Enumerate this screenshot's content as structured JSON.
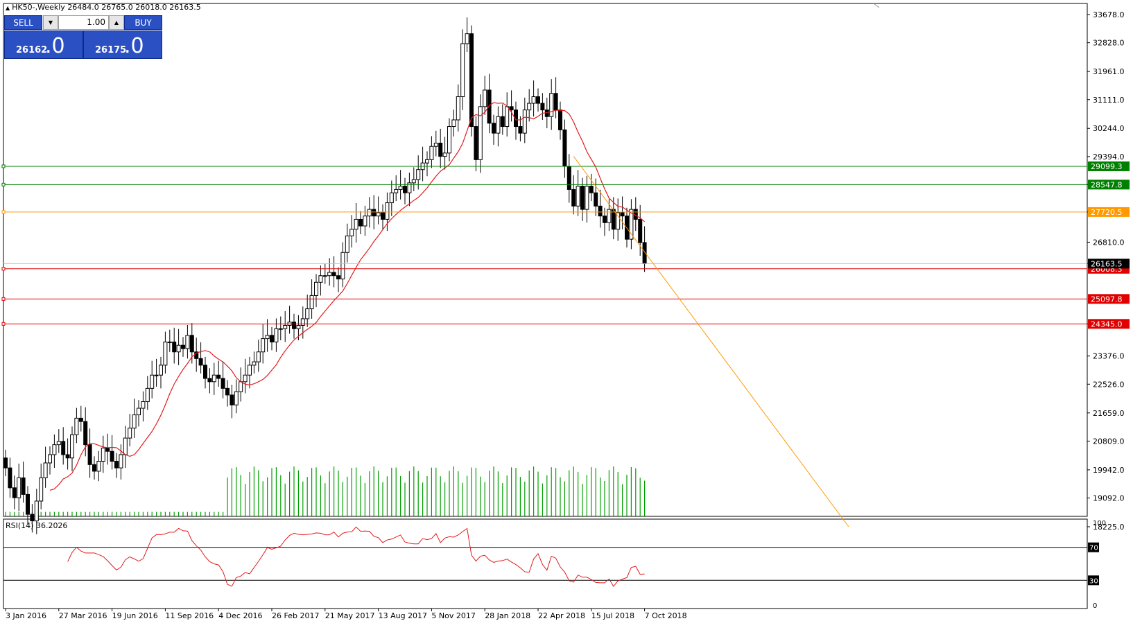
{
  "header": {
    "symbol": "HK50-,Weekly",
    "ohlc": "26484.0 26765.0 26018.0 26163.5"
  },
  "trade_panel": {
    "sell_label": "SELL",
    "buy_label": "BUY",
    "lot": "1.00",
    "sell_main": "26162",
    "sell_frac": ".0",
    "buy_main": "26175",
    "buy_frac": ".0"
  },
  "rsi_label": "RSI(14) 36.2026",
  "colors": {
    "background": "#ffffff",
    "candle": "#000000",
    "volume": "#00a000",
    "ma": "#e41a1c",
    "support_line": "#e00000",
    "resistance_line": "#008000",
    "trend_line": "#ff9900",
    "rsi": "#e41a1c",
    "button": "#2b50c4"
  },
  "chart_data": {
    "type": "candlestick",
    "timeframe": "Weekly",
    "ylim": [
      18225.0,
      33678.0
    ],
    "y_ticks": [
      "33678.0",
      "32828.0",
      "31961.0",
      "31111.0",
      "30244.0",
      "29394.0",
      "28547.8",
      "27720.5",
      "26810.0",
      "26163.5",
      "24345.0",
      "23376.0",
      "22526.0",
      "21659.0",
      "20809.0",
      "19942.0",
      "19092.0",
      "18225.0"
    ],
    "x_ticks": [
      {
        "i": 0,
        "label": "3 Jan 2016"
      },
      {
        "i": 12,
        "label": "27 Mar 2016"
      },
      {
        "i": 24,
        "label": "19 Jun 2016"
      },
      {
        "i": 36,
        "label": "11 Sep 2016"
      },
      {
        "i": 48,
        "label": "4 Dec 2016"
      },
      {
        "i": 60,
        "label": "26 Feb 2017"
      },
      {
        "i": 72,
        "label": "21 May 2017"
      },
      {
        "i": 84,
        "label": "13 Aug 2017"
      },
      {
        "i": 96,
        "label": "5 Nov 2017"
      },
      {
        "i": 108,
        "label": "28 Jan 2018"
      },
      {
        "i": 120,
        "label": "22 Apr 2018"
      },
      {
        "i": 132,
        "label": "15 Jul 2018"
      },
      {
        "i": 144,
        "label": "7 Oct 2018"
      }
    ],
    "closes": [
      20000,
      19400,
      19100,
      19700,
      19200,
      18600,
      18400,
      19000,
      19700,
      20150,
      20400,
      20700,
      20800,
      20400,
      20300,
      21000,
      21500,
      21400,
      20700,
      20100,
      19900,
      20200,
      20600,
      20500,
      20200,
      20000,
      20400,
      20900,
      21200,
      21600,
      21800,
      22000,
      22400,
      22800,
      22800,
      23100,
      23800,
      23800,
      23500,
      23700,
      23600,
      24000,
      23500,
      23300,
      23100,
      22700,
      22600,
      22800,
      22700,
      22400,
      22200,
      21900,
      22300,
      22600,
      22800,
      23100,
      23200,
      23500,
      23900,
      24000,
      23800,
      24200,
      24200,
      24300,
      24400,
      24200,
      24300,
      24500,
      24800,
      25200,
      25600,
      25800,
      25800,
      25900,
      25800,
      25700,
      26500,
      27000,
      27200,
      27500,
      27300,
      27600,
      27800,
      27600,
      27700,
      27500,
      28000,
      28300,
      28400,
      28500,
      28300,
      28600,
      28700,
      29000,
      29200,
      29300,
      29700,
      29800,
      29400,
      29500,
      30300,
      30500,
      31200,
      32800,
      33100,
      30300,
      29300,
      30900,
      31400,
      30400,
      30100,
      30600,
      30300,
      30900,
      30800,
      30300,
      30100,
      30800,
      31000,
      31200,
      31000,
      30800,
      30600,
      31300,
      30800,
      30200,
      29100,
      28400,
      27900,
      28500,
      27800,
      28500,
      28300,
      27900,
      27600,
      27400,
      27800,
      27200,
      27700,
      27600,
      26900,
      27800,
      27500,
      26800,
      26163.5
    ],
    "ma_period": 10,
    "volumes": [
      1,
      1,
      1,
      1,
      1,
      1,
      1,
      1,
      1,
      1,
      1,
      1,
      1,
      1,
      1,
      1,
      1,
      1,
      1,
      1,
      1,
      1,
      1,
      1,
      1,
      1,
      1,
      1,
      1,
      1,
      1,
      1,
      1,
      1,
      1,
      1,
      1,
      1,
      1,
      1,
      1,
      1,
      1,
      1,
      1,
      1,
      1,
      1,
      1,
      1,
      1,
      1,
      1,
      1,
      1,
      1,
      1,
      1,
      1,
      1,
      1,
      1,
      1,
      1,
      1,
      1,
      1,
      1,
      1,
      1,
      1,
      1,
      1,
      1,
      1,
      1,
      1,
      1,
      1,
      1,
      1,
      1,
      1,
      1,
      1,
      1,
      1,
      1,
      1,
      1,
      1,
      1,
      1,
      1,
      1,
      1,
      1,
      1,
      1,
      1,
      1,
      1,
      1,
      1,
      1,
      1,
      1,
      1,
      1,
      1,
      1,
      1,
      1,
      1,
      1,
      1,
      1,
      1,
      1,
      1,
      1,
      1,
      1,
      1,
      1,
      1,
      1,
      1,
      1,
      1,
      1,
      1,
      1,
      1,
      1,
      1,
      1,
      1,
      1,
      1,
      1,
      1,
      1,
      1,
      1
    ],
    "horizontal_levels": [
      {
        "value": 29099.3,
        "label": "29099.3",
        "kind": "resistance"
      },
      {
        "value": 28547.8,
        "label": "28547.8",
        "kind": "resistance"
      },
      {
        "value": 27720.5,
        "label": "27720.5",
        "kind": "trend"
      },
      {
        "value": 26008.3,
        "label": "26008.3",
        "kind": "support"
      },
      {
        "value": 25097.8,
        "label": "25097.8",
        "kind": "support"
      },
      {
        "value": 24345.0,
        "label": "24345.0",
        "kind": "support"
      }
    ],
    "last_price": {
      "value": 26163.5,
      "label": "26163.5"
    },
    "trendline": {
      "from": {
        "i": 128,
        "y": 29400
      },
      "to": {
        "i": 190,
        "y": 18225
      }
    },
    "rsi": {
      "period": 14,
      "value": 36.2026,
      "levels": [
        70,
        30
      ],
      "ticks": [
        "100",
        "70",
        "30",
        "0"
      ]
    }
  }
}
